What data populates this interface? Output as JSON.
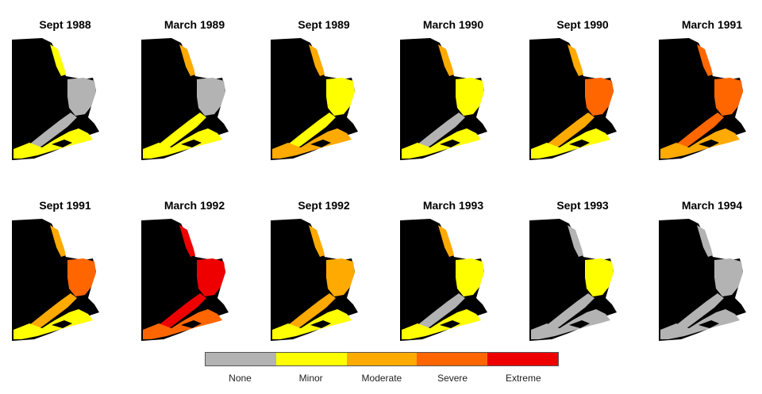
{
  "panels": [
    {
      "title": "Sept 1988",
      "east": "none",
      "estuary": "none",
      "north": "minor",
      "south": "minor"
    },
    {
      "title": "March 1989",
      "east": "none",
      "estuary": "minor",
      "north": "moderate",
      "south": "minor"
    },
    {
      "title": "Sept 1989",
      "east": "minor",
      "estuary": "minor",
      "north": "moderate",
      "south": "moderate"
    },
    {
      "title": "March 1990",
      "east": "minor",
      "estuary": "none",
      "north": "moderate",
      "south": "minor"
    },
    {
      "title": "Sept 1990",
      "east": "severe",
      "estuary": "moderate",
      "north": "moderate",
      "south": "minor"
    },
    {
      "title": "March 1991",
      "east": "severe",
      "estuary": "severe",
      "north": "severe",
      "south": "moderate"
    },
    {
      "title": "Sept 1991",
      "east": "severe",
      "estuary": "moderate",
      "north": "moderate",
      "south": "minor"
    },
    {
      "title": "March 1992",
      "east": "extreme",
      "estuary": "extreme",
      "north": "extreme",
      "south": "severe"
    },
    {
      "title": "Sept 1992",
      "east": "moderate",
      "estuary": "moderate",
      "north": "moderate",
      "south": "minor"
    },
    {
      "title": "March 1993",
      "east": "minor",
      "estuary": "none",
      "north": "moderate",
      "south": "minor"
    },
    {
      "title": "Sept 1993",
      "east": "minor",
      "estuary": "none",
      "north": "none",
      "south": "none"
    },
    {
      "title": "March 1994",
      "east": "none",
      "estuary": "none",
      "north": "none",
      "south": "none"
    }
  ],
  "legend": {
    "categories": [
      {
        "key": "none",
        "label": "None",
        "color": "#b3b3b3"
      },
      {
        "key": "minor",
        "label": "Minor",
        "color": "#ffff00"
      },
      {
        "key": "moderate",
        "label": "Moderate",
        "color": "#ffaa00"
      },
      {
        "key": "severe",
        "label": "Severe",
        "color": "#ff6600"
      },
      {
        "key": "extreme",
        "label": "Extreme",
        "color": "#ee0000"
      }
    ]
  },
  "land_color": "#000000"
}
